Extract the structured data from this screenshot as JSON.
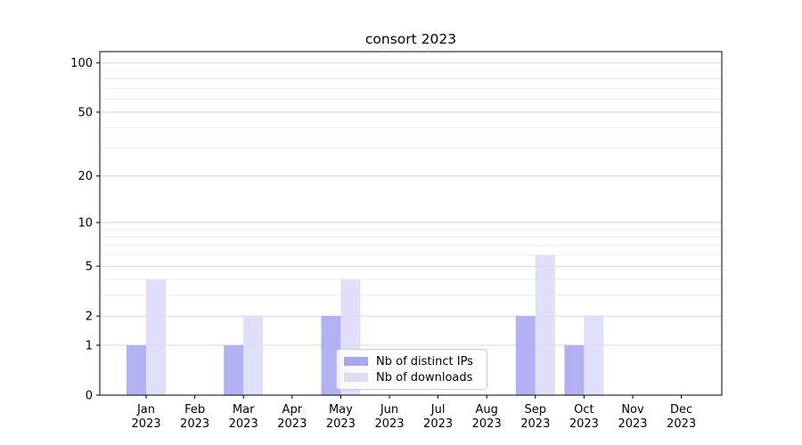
{
  "chart_data": {
    "type": "bar",
    "title": "consort 2023",
    "categories": [
      "Jan",
      "Feb",
      "Mar",
      "Apr",
      "May",
      "Jun",
      "Jul",
      "Aug",
      "Sep",
      "Oct",
      "Nov",
      "Dec"
    ],
    "category_year": "2023",
    "series": [
      {
        "name": "Nb of distinct IPs",
        "color": "#a8a8f2",
        "values": [
          1,
          0,
          1,
          0,
          2,
          0,
          0,
          0,
          2,
          1,
          0,
          0
        ]
      },
      {
        "name": "Nb of downloads",
        "color": "#dcdcf8",
        "values": [
          4,
          0,
          2,
          0,
          4,
          0,
          0,
          0,
          6,
          2,
          0,
          0
        ]
      }
    ],
    "y_axis": {
      "scale": "log1p",
      "tick_labels": [
        0,
        1,
        2,
        5,
        10,
        20,
        50,
        100
      ],
      "minor_gridlines": [
        3,
        4,
        6,
        7,
        8,
        9,
        30,
        40,
        60,
        70,
        80,
        90
      ],
      "range": [
        0,
        117
      ]
    },
    "legend_position": "lower center",
    "grid": true,
    "colors": {
      "major_grid": "#d6d6d6",
      "minor_grid": "#ececec",
      "spine": "#000000",
      "text": "#000000",
      "background": "#ffffff"
    }
  }
}
